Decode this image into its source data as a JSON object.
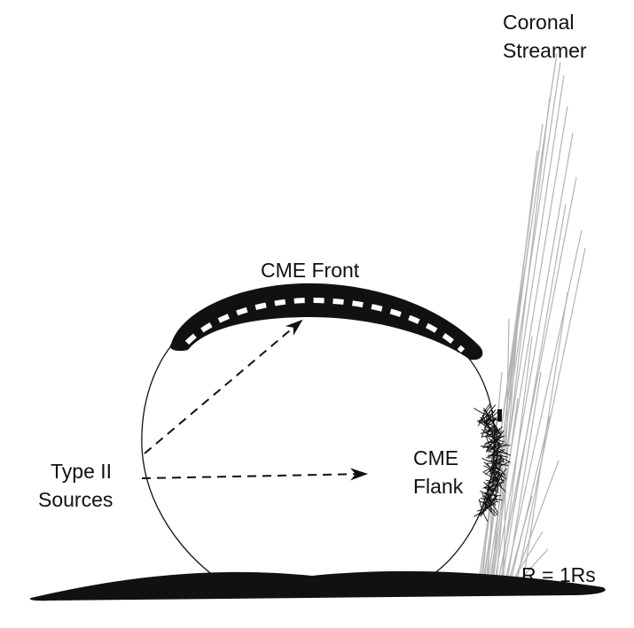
{
  "labels": {
    "streamer_line1": "Coronal",
    "streamer_line2": "Streamer",
    "cme_front": "CME Front",
    "cme_flank_line1": "CME",
    "cme_flank_line2": "Flank",
    "type_ii_line1": "Type II",
    "type_ii_line2": "Sources",
    "solar_surface": "R = 1Rs"
  },
  "colors": {
    "ink": "#111111",
    "streamer": "#b3b3b3",
    "front_dash": "#ffffff",
    "background": "#ffffff"
  }
}
